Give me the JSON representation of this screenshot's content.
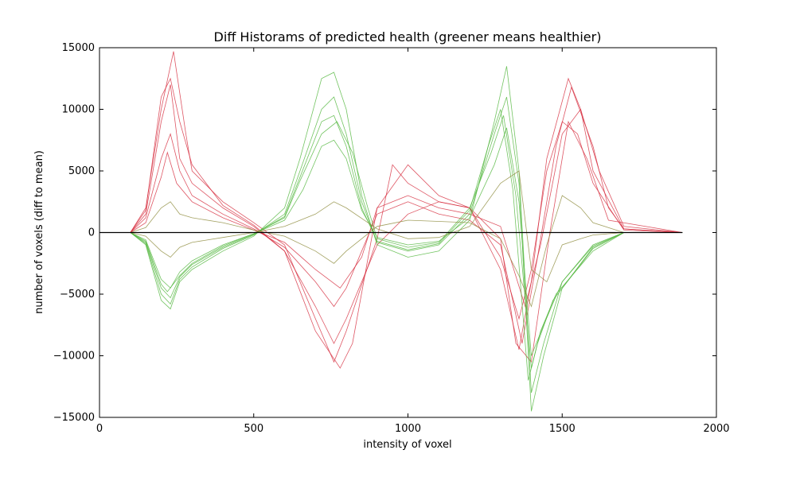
{
  "chart_data": {
    "type": "line",
    "title": "Diff Historams of predicted health (greener means healthier)",
    "xlabel": "intensity of voxel",
    "ylabel": "number of voxels (diff to mean)",
    "xlim": [
      0,
      2000
    ],
    "ylim": [
      -15000,
      15000
    ],
    "xticks": [
      0,
      500,
      1000,
      1500,
      2000
    ],
    "yticks": [
      -15000,
      -10000,
      -5000,
      0,
      5000,
      10000,
      15000
    ],
    "xtick_labels": [
      "0",
      "500",
      "1000",
      "1500",
      "2000"
    ],
    "ytick_labels": [
      "−15000",
      "−10000",
      "−5000",
      "0",
      "5000",
      "10000",
      "15000"
    ],
    "grid": false,
    "legend": "none",
    "colors": {
      "red": "#d62a3c",
      "green": "#4fb53a",
      "zero_line": "#000000"
    },
    "series": [
      {
        "color": "#d62a3c",
        "x": [
          0,
          100,
          150,
          200,
          230,
          260,
          300,
          400,
          500,
          600,
          700,
          760,
          800,
          900,
          1000,
          1100,
          1200,
          1300,
          1360,
          1400,
          1450,
          1500,
          1550,
          1600,
          1700,
          1890
        ],
        "y": [
          0,
          0,
          1500,
          9000,
          12000,
          6000,
          4000,
          2000,
          500,
          -1500,
          -6000,
          -9000,
          -7000,
          -1000,
          1500,
          2500,
          2000,
          -2000,
          -7000,
          -3000,
          5000,
          9000,
          8000,
          4000,
          200,
          0
        ]
      },
      {
        "color": "#d62a3c",
        "x": [
          0,
          100,
          150,
          200,
          240,
          280,
          300,
          400,
          500,
          600,
          700,
          760,
          800,
          900,
          950,
          1000,
          1100,
          1200,
          1300,
          1360,
          1400,
          1450,
          1520,
          1560,
          1600,
          1700,
          1890
        ],
        "y": [
          0,
          0,
          2000,
          10000,
          14700,
          8000,
          5000,
          2500,
          800,
          -1000,
          -7000,
          -10500,
          -8000,
          -500,
          5500,
          4000,
          2500,
          2000,
          -3000,
          -9500,
          -4000,
          6000,
          12500,
          10000,
          5000,
          300,
          0
        ]
      },
      {
        "color": "#d62a3c",
        "x": [
          0,
          100,
          150,
          200,
          230,
          260,
          300,
          400,
          500,
          600,
          700,
          760,
          800,
          900,
          1000,
          1100,
          1200,
          1300,
          1370,
          1420,
          1480,
          1530,
          1600,
          1650,
          1700,
          1890
        ],
        "y": [
          0,
          0,
          1200,
          6000,
          8000,
          5000,
          3000,
          1500,
          300,
          -1200,
          -4000,
          -6000,
          -4500,
          1500,
          2500,
          1500,
          1000,
          -1000,
          -9000,
          -2000,
          7000,
          11800,
          7000,
          2000,
          300,
          0
        ]
      },
      {
        "color": "#d62a3c",
        "x": [
          0,
          100,
          150,
          200,
          220,
          250,
          300,
          400,
          500,
          600,
          700,
          780,
          850,
          900,
          1000,
          1100,
          1200,
          1300,
          1380,
          1430,
          1500,
          1560,
          1620,
          1700,
          1890
        ],
        "y": [
          0,
          0,
          800,
          4500,
          6500,
          4000,
          2500,
          1200,
          200,
          -800,
          -3000,
          -4500,
          -2000,
          2000,
          3000,
          2000,
          1500,
          500,
          -6000,
          -1000,
          8000,
          10000,
          5000,
          500,
          0
        ]
      },
      {
        "color": "#d62a3c",
        "x": [
          0,
          100,
          150,
          200,
          230,
          260,
          300,
          400,
          500,
          600,
          700,
          780,
          820,
          900,
          1000,
          1100,
          1200,
          1300,
          1350,
          1400,
          1460,
          1520,
          1580,
          1650,
          1890
        ],
        "y": [
          0,
          0,
          1800,
          11000,
          12500,
          9000,
          5500,
          2200,
          600,
          -1500,
          -8000,
          -11000,
          -9000,
          2000,
          5500,
          3000,
          2000,
          -500,
          -9000,
          -10500,
          0,
          9000,
          6000,
          1000,
          0
        ]
      },
      {
        "color": "#4fb53a",
        "x": [
          0,
          100,
          150,
          200,
          230,
          260,
          300,
          400,
          500,
          600,
          650,
          720,
          760,
          800,
          850,
          900,
          1000,
          1100,
          1200,
          1280,
          1320,
          1360,
          1400,
          1440,
          1500,
          1600,
          1700,
          1890
        ],
        "y": [
          0,
          0,
          -1000,
          -5500,
          -6200,
          -4000,
          -3000,
          -1500,
          -300,
          2000,
          6000,
          12500,
          13000,
          10000,
          3000,
          -1000,
          -2000,
          -1500,
          1000,
          9000,
          13500,
          5000,
          -13000,
          -9000,
          -4000,
          -1000,
          0,
          0
        ]
      },
      {
        "color": "#4fb53a",
        "x": [
          0,
          100,
          150,
          200,
          230,
          260,
          300,
          400,
          500,
          600,
          650,
          720,
          760,
          800,
          850,
          900,
          1000,
          1100,
          1200,
          1280,
          1320,
          1360,
          1400,
          1440,
          1500,
          1600,
          1700,
          1890
        ],
        "y": [
          0,
          0,
          -900,
          -5000,
          -5800,
          -3800,
          -2800,
          -1300,
          -200,
          1500,
          5000,
          10000,
          11000,
          8000,
          2500,
          -800,
          -1500,
          -1000,
          1500,
          8000,
          11000,
          4000,
          -14500,
          -10000,
          -4500,
          -1200,
          0,
          0
        ]
      },
      {
        "color": "#4fb53a",
        "x": [
          0,
          100,
          150,
          200,
          220,
          260,
          300,
          400,
          500,
          600,
          650,
          720,
          770,
          820,
          870,
          900,
          1000,
          1100,
          1200,
          1270,
          1310,
          1350,
          1400,
          1430,
          1480,
          1600,
          1700,
          1890
        ],
        "y": [
          0,
          0,
          -700,
          -4200,
          -4800,
          -3500,
          -2500,
          -1100,
          -100,
          1200,
          4200,
          8000,
          9000,
          6500,
          2000,
          -500,
          -1200,
          -800,
          2000,
          6500,
          9500,
          3000,
          -11000,
          -8000,
          -5000,
          -1500,
          0,
          0
        ]
      },
      {
        "color": "#4fb53a",
        "x": [
          0,
          100,
          150,
          200,
          230,
          260,
          300,
          400,
          500,
          600,
          650,
          720,
          760,
          800,
          850,
          900,
          1000,
          1100,
          1200,
          1260,
          1300,
          1340,
          1390,
          1420,
          1470,
          1600,
          1700,
          1890
        ],
        "y": [
          0,
          0,
          -800,
          -4500,
          -5300,
          -3600,
          -2600,
          -1200,
          -150,
          1300,
          4500,
          9000,
          9500,
          7000,
          2000,
          -700,
          -1400,
          -900,
          1800,
          7000,
          10000,
          3500,
          -12000,
          -9000,
          -5500,
          -1300,
          0,
          0
        ]
      },
      {
        "color": "#4fb53a",
        "x": [
          0,
          100,
          150,
          200,
          230,
          260,
          300,
          400,
          500,
          600,
          660,
          720,
          760,
          800,
          850,
          900,
          1000,
          1100,
          1200,
          1280,
          1320,
          1360,
          1400,
          1440,
          1500,
          1600,
          1700,
          1890
        ],
        "y": [
          0,
          0,
          -600,
          -3800,
          -4500,
          -3200,
          -2300,
          -1000,
          -100,
          1000,
          3500,
          7000,
          7500,
          6000,
          1800,
          -400,
          -1000,
          -700,
          1200,
          5500,
          8500,
          2500,
          -10000,
          -7500,
          -4000,
          -1100,
          0,
          0
        ]
      },
      {
        "color": "#8c8a3a",
        "x": [
          0,
          100,
          150,
          200,
          230,
          260,
          300,
          400,
          500,
          600,
          700,
          760,
          800,
          900,
          1000,
          1100,
          1200,
          1300,
          1360,
          1400,
          1450,
          1500,
          1560,
          1600,
          1700,
          1890
        ],
        "y": [
          0,
          0,
          400,
          2000,
          2500,
          1500,
          1200,
          800,
          200,
          -300,
          -1500,
          -2500,
          -1500,
          500,
          1000,
          900,
          800,
          -500,
          -3500,
          -6000,
          -1000,
          3000,
          2000,
          800,
          0,
          0
        ]
      },
      {
        "color": "#8c8a3a",
        "x": [
          0,
          100,
          150,
          200,
          230,
          260,
          300,
          400,
          500,
          600,
          700,
          760,
          800,
          900,
          1000,
          1100,
          1200,
          1300,
          1360,
          1400,
          1450,
          1500,
          1560,
          1600,
          1700,
          1890
        ],
        "y": [
          0,
          0,
          -300,
          -1500,
          -2000,
          -1200,
          -800,
          -400,
          0,
          500,
          1500,
          2500,
          2000,
          300,
          -500,
          -400,
          500,
          4000,
          5000,
          -3000,
          -4000,
          -1000,
          -500,
          -200,
          0,
          0
        ]
      }
    ]
  }
}
